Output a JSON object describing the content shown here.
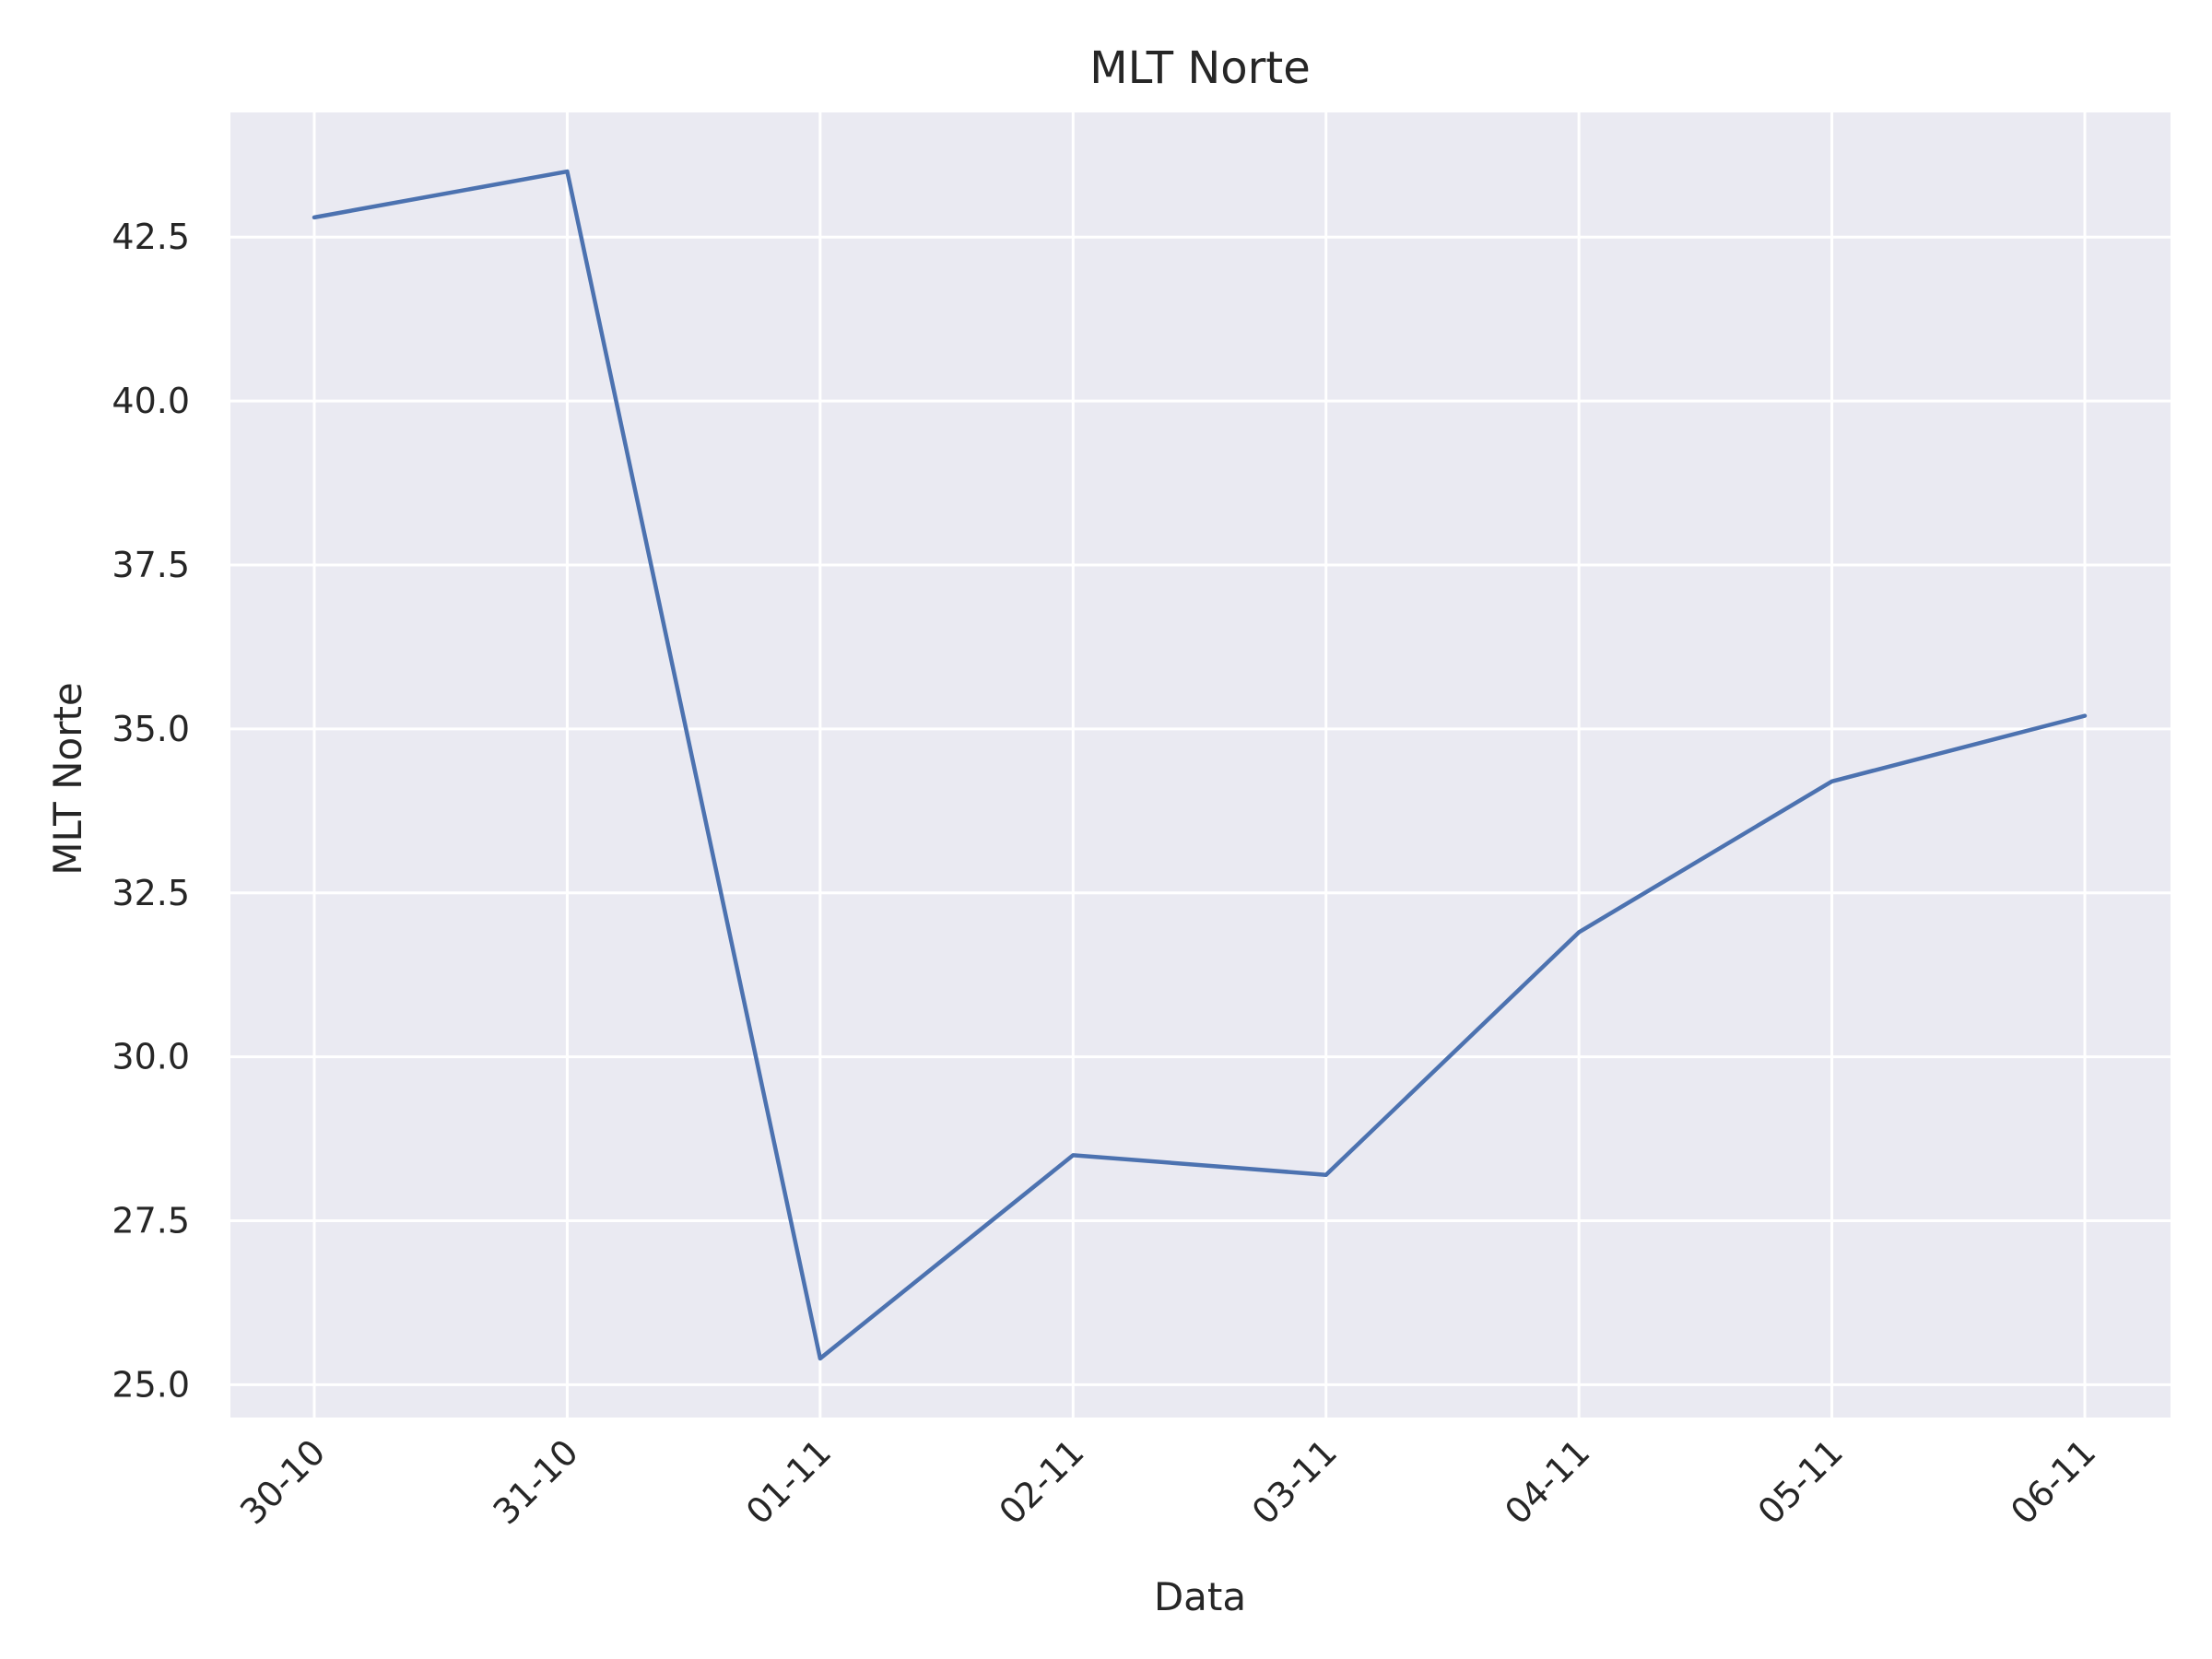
{
  "chart_data": {
    "type": "line",
    "title": "MLT Norte",
    "xlabel": "Data",
    "ylabel": "MLT Norte",
    "categories": [
      "30-10",
      "31-10",
      "01-11",
      "02-11",
      "03-11",
      "04-11",
      "05-11",
      "06-11"
    ],
    "series": [
      {
        "values": [
          42.8,
          43.5,
          25.4,
          28.5,
          28.2,
          31.9,
          34.2,
          35.2
        ]
      }
    ],
    "yticks": [
      25.0,
      27.5,
      30.0,
      32.5,
      35.0,
      37.5,
      40.0,
      42.5
    ],
    "ylim": [
      24.5,
      44.4
    ],
    "grid": true,
    "legend": "none",
    "colors": {
      "line": "#4c72b0",
      "background": "#eaeaf2",
      "grid": "#ffffff"
    }
  }
}
